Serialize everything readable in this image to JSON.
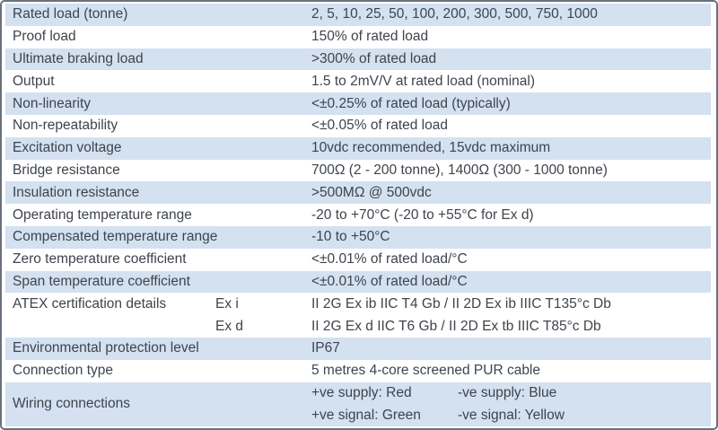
{
  "table": {
    "rows": [
      {
        "label": "Rated load (tonne)",
        "value": "2, 5, 10, 25, 50, 100, 200, 300, 500, 750, 1000"
      },
      {
        "label": "Proof load",
        "value": "150% of rated load"
      },
      {
        "label": "Ultimate braking load",
        "value": ">300% of rated load"
      },
      {
        "label": "Output",
        "value": "1.5 to 2mV/V at rated load (nominal)"
      },
      {
        "label": "Non-linearity",
        "value": "<±0.25% of rated load (typically)"
      },
      {
        "label": "Non-repeatability",
        "value": "<±0.05% of rated load"
      },
      {
        "label": "Excitation voltage",
        "value": "10vdc recommended, 15vdc maximum"
      },
      {
        "label": "Bridge resistance",
        "value": "700Ω (2 - 200 tonne), 1400Ω (300 - 1000 tonne)"
      },
      {
        "label": "Insulation resistance",
        "value": ">500MΩ @ 500vdc"
      },
      {
        "label": "Operating temperature range",
        "value": "-20 to +70°C (-20 to +55°C for Ex d)"
      },
      {
        "label": "Compensated temperature range",
        "value": "-10 to +50°C"
      },
      {
        "label": "Zero temperature coefficient",
        "value": "<±0.01% of rated load/°C"
      },
      {
        "label": "Span temperature coefficient",
        "value": "<±0.01% of  rated load/°C"
      }
    ],
    "atex": {
      "label": "ATEX certification details",
      "entries": [
        {
          "name": "Ex i",
          "value": "II 2G Ex ib IIC T4 Gb / II 2D Ex ib IIIC T135°c Db"
        },
        {
          "name": "Ex d",
          "value": "II 2G Ex d IIC T6 Gb / II 2D Ex tb IIIC T85°c Db"
        }
      ]
    },
    "rows_after_atex": [
      {
        "label": "Environmental protection level",
        "value": "IP67"
      },
      {
        "label": "Connection type",
        "value": "5 metres 4-core screened PUR cable"
      }
    ],
    "wiring": {
      "label": "Wiring connections",
      "lines": [
        {
          "left": "+ve supply: Red",
          "right": "-ve supply: Blue"
        },
        {
          "left": "+ve signal: Green",
          "right": "-ve signal: Yellow"
        }
      ]
    },
    "colors": {
      "row_highlight": "#d3e1f0",
      "row_plain": "#ffffff",
      "border": "#69727c",
      "text": "#3e444c"
    }
  }
}
